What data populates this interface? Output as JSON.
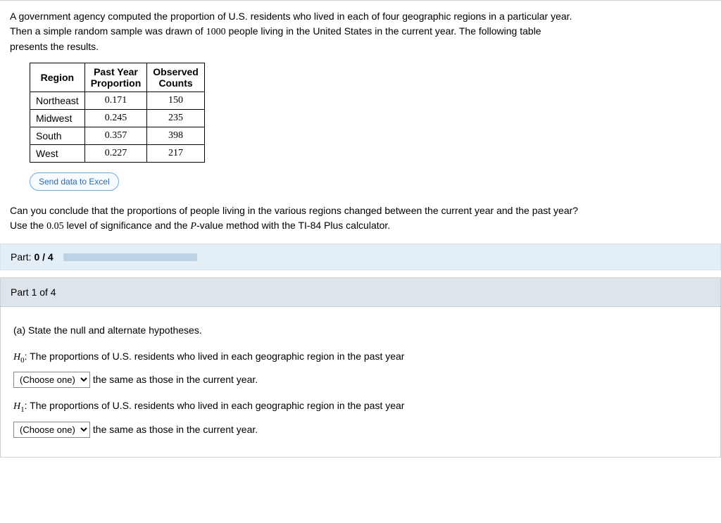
{
  "intro": {
    "line1_a": "A government agency computed the proportion of U.S. residents who lived in each of four geographic regions in a particular year.",
    "line2_a": "Then a simple random sample was drawn of ",
    "sample_n": "1000",
    "line2_b": " people living in the United States in the current year. The following table",
    "line3": "presents the results."
  },
  "table": {
    "headers": {
      "c1": "Region",
      "c2a": "Past Year",
      "c2b": "Proportion",
      "c3a": "Observed",
      "c3b": "Counts"
    },
    "rows": [
      {
        "region": "Northeast",
        "prop": "0.171",
        "count": "150"
      },
      {
        "region": "Midwest",
        "prop": "0.245",
        "count": "235"
      },
      {
        "region": "South",
        "prop": "0.357",
        "count": "398"
      },
      {
        "region": "West",
        "prop": "0.227",
        "count": "217"
      }
    ]
  },
  "excel_button": "Send data to Excel",
  "question": {
    "line1": "Can you conclude that the proportions of people living in the various regions changed between the current year and the past year?",
    "line2_a": "Use the ",
    "alpha": "0.05",
    "line2_b": " level of significance and the ",
    "p_label": "P",
    "line2_c": "-value method with the TI-84 Plus calculator."
  },
  "progress": {
    "label_a": "Part: ",
    "label_b": "0 / 4"
  },
  "part1": {
    "header": "Part 1 of 4",
    "prompt": "(a) State the null and alternate hypotheses.",
    "h0_pre": "H",
    "h0_sub": "0",
    "h0_text": ": The proportions of U.S. residents who lived in each geographic region in the past year",
    "h1_pre": "H",
    "h1_sub": "1",
    "h1_text": ": The proportions of U.S. residents who lived in each geographic region in the past year",
    "choose": "(Choose one)",
    "tail": " the same as those in the current year."
  }
}
